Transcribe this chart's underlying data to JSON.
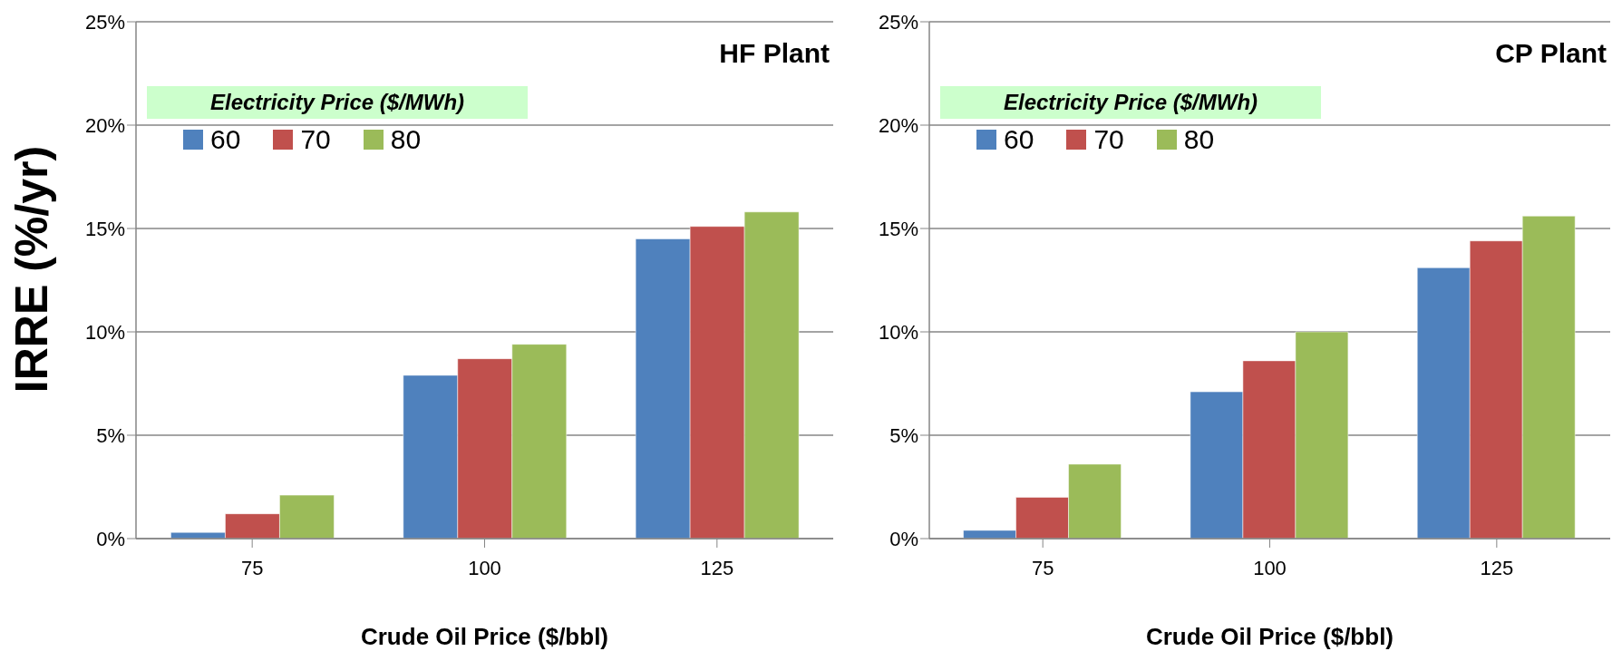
{
  "chart_data": [
    {
      "type": "bar",
      "title": "HF Plant",
      "ylabel": "IRRE (%/yr)",
      "xlabel": "Crude Oil Price ($/bbl)",
      "legend_title": "Electricity Price ($/MWh)",
      "categories": [
        "75",
        "100",
        "125"
      ],
      "series": [
        {
          "name": "60",
          "color": "#4f81bd",
          "values": [
            0.3,
            7.9,
            14.5
          ]
        },
        {
          "name": "70",
          "color": "#c0504d",
          "values": [
            1.2,
            8.7,
            15.1
          ]
        },
        {
          "name": "80",
          "color": "#9bbb59",
          "values": [
            2.1,
            9.4,
            15.8
          ]
        }
      ],
      "ylim": [
        0,
        25
      ],
      "yticks": [
        {
          "value": 0,
          "label": "0%"
        },
        {
          "value": 5,
          "label": "5%"
        },
        {
          "value": 10,
          "label": "10%"
        },
        {
          "value": 15,
          "label": "15%"
        },
        {
          "value": 20,
          "label": "20%"
        },
        {
          "value": 25,
          "label": "25%"
        }
      ],
      "grid": "y",
      "legend": "top left"
    },
    {
      "type": "bar",
      "title": "CP Plant",
      "xlabel": "Crude Oil Price ($/bbl)",
      "legend_title": "Electricity Price ($/MWh)",
      "categories": [
        "75",
        "100",
        "125"
      ],
      "series": [
        {
          "name": "60",
          "color": "#4f81bd",
          "values": [
            0.4,
            7.1,
            13.1
          ]
        },
        {
          "name": "70",
          "color": "#c0504d",
          "values": [
            2.0,
            8.6,
            14.4
          ]
        },
        {
          "name": "80",
          "color": "#9bbb59",
          "values": [
            3.6,
            10.0,
            15.6
          ]
        }
      ],
      "ylim": [
        0,
        25
      ],
      "yticks": [
        {
          "value": 0,
          "label": "0%"
        },
        {
          "value": 5,
          "label": "5%"
        },
        {
          "value": 10,
          "label": "10%"
        },
        {
          "value": 15,
          "label": "15%"
        },
        {
          "value": 20,
          "label": "20%"
        },
        {
          "value": 25,
          "label": "25%"
        }
      ],
      "grid": "y",
      "legend": "top left"
    }
  ]
}
